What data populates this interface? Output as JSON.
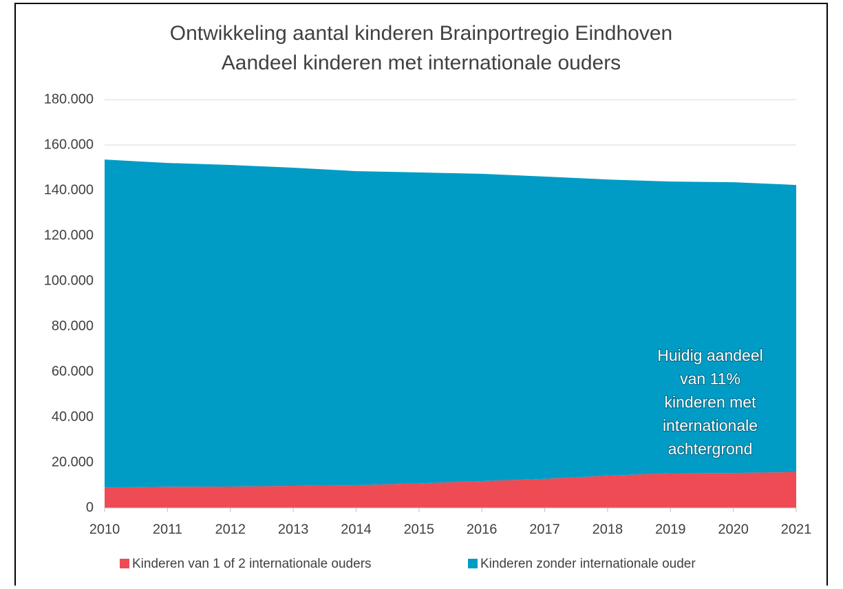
{
  "chart_data": {
    "type": "stacked_area",
    "title": "Ontwikkeling aantal kinderen Brainportregio Eindhoven",
    "subtitle": "Aandeel kinderen met internationale ouders",
    "categories": [
      "2010",
      "2011",
      "2012",
      "2013",
      "2014",
      "2015",
      "2016",
      "2017",
      "2018",
      "2019",
      "2020",
      "2021"
    ],
    "series": [
      {
        "name": "Kinderen van 1 of 2 internationale ouders",
        "color": "#ee4b55",
        "values": [
          9000,
          9300,
          9400,
          9700,
          10000,
          10800,
          11800,
          12800,
          14200,
          15300,
          15400,
          15800
        ]
      },
      {
        "name": "Kinderen zonder internationale ouder",
        "color": "#009cc5",
        "values": [
          144600,
          142800,
          141800,
          140300,
          138500,
          137100,
          135500,
          133300,
          130600,
          128600,
          128200,
          126600
        ]
      }
    ],
    "ylim": [
      0,
      180000
    ],
    "yticks": [
      0,
      {
        "value": 20000,
        "label": "20.000"
      },
      {
        "value": 40000,
        "label": "40.000"
      },
      {
        "value": 60000,
        "label": "60.000"
      },
      {
        "value": 80000,
        "label": "80.000"
      },
      {
        "value": 100000,
        "label": "100.000"
      },
      {
        "value": 120000,
        "label": "120.000"
      },
      {
        "value": 140000,
        "label": "140.000"
      },
      {
        "value": 160000,
        "label": "160.000"
      },
      {
        "value": 180000,
        "label": "180.000"
      }
    ],
    "grid": true,
    "legend": "bottom",
    "annotation": [
      "Huidig aandeel",
      "van 11%",
      "kinderen met",
      "internationale",
      "achtergrond"
    ]
  }
}
